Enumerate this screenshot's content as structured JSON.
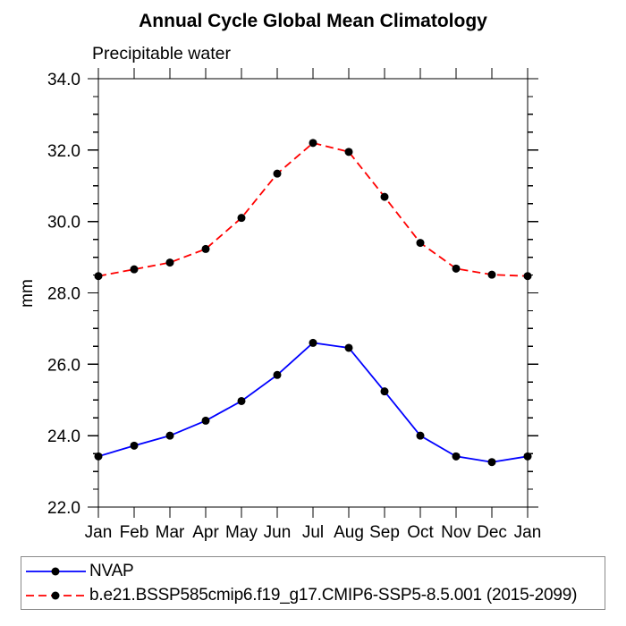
{
  "title": "Annual Cycle Global Mean Climatology",
  "subtitle": "Precipitable water",
  "colors": {
    "nvap_line": "#0000ff",
    "model_line": "#ff0000",
    "marker": "#000000",
    "axis": "#000000",
    "legend_border": "#8a8a8a"
  },
  "chart_data": {
    "type": "line",
    "title": "Annual Cycle Global Mean Climatology",
    "subtitle": "Precipitable water",
    "xlabel": "",
    "ylabel": "mm",
    "categories": [
      "Jan",
      "Feb",
      "Mar",
      "Apr",
      "May",
      "Jun",
      "Jul",
      "Aug",
      "Sep",
      "Oct",
      "Nov",
      "Dec",
      "Jan"
    ],
    "ylim": [
      22.0,
      34.0
    ],
    "ytick_major_step": 2.0,
    "ytick_minor_step": 0.5,
    "ytick_labels": [
      "22.0",
      "24.0",
      "26.0",
      "28.0",
      "30.0",
      "32.0",
      "34.0"
    ],
    "grid": false,
    "legend_position": "bottom-left box",
    "series": [
      {
        "name": "NVAP",
        "color": "#0000ff",
        "style": "solid",
        "marker": "black-dot",
        "values": [
          23.42,
          23.72,
          24.0,
          24.42,
          24.97,
          25.7,
          26.6,
          26.46,
          25.24,
          24.0,
          23.42,
          23.26,
          23.42
        ]
      },
      {
        "name": "b.e21.BSSP585cmip6.f19_g17.CMIP6-SSP5-8.5.001 (2015-2099)",
        "color": "#ff0000",
        "style": "dashed",
        "marker": "black-dot",
        "values": [
          28.47,
          28.66,
          28.85,
          29.23,
          30.1,
          31.34,
          32.2,
          31.95,
          30.69,
          29.4,
          28.68,
          28.51,
          28.47
        ]
      }
    ]
  }
}
